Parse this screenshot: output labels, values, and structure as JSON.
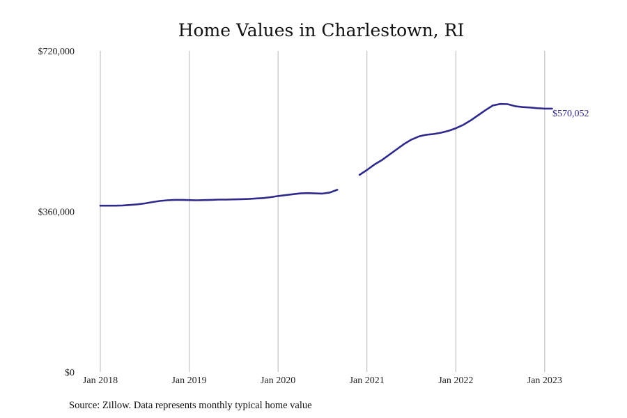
{
  "chart_data": {
    "type": "line",
    "title": "Home Values in Charlestown, RI",
    "xlabel": "",
    "ylabel": "",
    "ylim": [
      0,
      720000
    ],
    "xlim": [
      "2018-01",
      "2023-06"
    ],
    "grid": "vertical",
    "y_ticks": [
      {
        "value": 0,
        "label": "$0"
      },
      {
        "value": 360000,
        "label": "$360,000"
      },
      {
        "value": 720000,
        "label": "$720,000"
      }
    ],
    "x_ticks": [
      {
        "value": "2018-01",
        "label": "Jan 2018"
      },
      {
        "value": "2019-01",
        "label": "Jan 2019"
      },
      {
        "value": "2020-01",
        "label": "Jan 2020"
      },
      {
        "value": "2021-01",
        "label": "Jan 2021"
      },
      {
        "value": "2022-01",
        "label": "Jan 2022"
      },
      {
        "value": "2023-01",
        "label": "Jan 2023"
      }
    ],
    "series": [
      {
        "color": "#2e2a8c",
        "segments": [
          [
            [
              "2018-01",
              373000
            ],
            [
              "2018-02",
              373000
            ],
            [
              "2018-03",
              373000
            ],
            [
              "2018-04",
              373500
            ],
            [
              "2018-05",
              374500
            ],
            [
              "2018-06",
              376000
            ],
            [
              "2018-07",
              378000
            ],
            [
              "2018-08",
              381000
            ],
            [
              "2018-09",
              383500
            ],
            [
              "2018-10",
              385000
            ],
            [
              "2018-11",
              386000
            ],
            [
              "2018-12",
              386000
            ],
            [
              "2019-01",
              385500
            ],
            [
              "2019-02",
              385000
            ],
            [
              "2019-03",
              385500
            ],
            [
              "2019-04",
              386000
            ],
            [
              "2019-05",
              386500
            ],
            [
              "2019-06",
              386500
            ],
            [
              "2019-07",
              387000
            ],
            [
              "2019-08",
              387500
            ],
            [
              "2019-09",
              388000
            ],
            [
              "2019-10",
              389000
            ],
            [
              "2019-11",
              390000
            ],
            [
              "2019-12",
              392000
            ],
            [
              "2020-01",
              394500
            ],
            [
              "2020-02",
              396500
            ],
            [
              "2020-03",
              398500
            ],
            [
              "2020-04",
              400500
            ],
            [
              "2020-05",
              401000
            ],
            [
              "2020-06",
              400500
            ],
            [
              "2020-07",
              400000
            ],
            [
              "2020-08",
              402500
            ],
            [
              "2020-09",
              408500
            ]
          ],
          [
            [
              "2020-12",
              442000
            ],
            [
              "2021-01",
              453000
            ],
            [
              "2021-02",
              465000
            ],
            [
              "2021-03",
              475000
            ],
            [
              "2021-04",
              487000
            ],
            [
              "2021-05",
              499000
            ],
            [
              "2021-06",
              511000
            ],
            [
              "2021-07",
              521000
            ],
            [
              "2021-08",
              528000
            ],
            [
              "2021-09",
              532000
            ],
            [
              "2021-10",
              533500
            ],
            [
              "2021-11",
              536500
            ],
            [
              "2021-12",
              540500
            ],
            [
              "2022-01",
              546500
            ],
            [
              "2022-02",
              554000
            ],
            [
              "2022-03",
              564000
            ],
            [
              "2022-04",
              575500
            ],
            [
              "2022-05",
              587000
            ],
            [
              "2022-06",
              597500
            ],
            [
              "2022-07",
              601000
            ],
            [
              "2022-08",
              600500
            ],
            [
              "2022-09",
              596000
            ],
            [
              "2022-10",
              594000
            ],
            [
              "2022-11",
              593000
            ],
            [
              "2022-12",
              591500
            ],
            [
              "2023-01",
              590500
            ],
            [
              "2023-02",
              590500
            ]
          ]
        ]
      }
    ],
    "end_label": "$570,052",
    "source": "Source: Zillow. Data represents monthly typical home value"
  }
}
